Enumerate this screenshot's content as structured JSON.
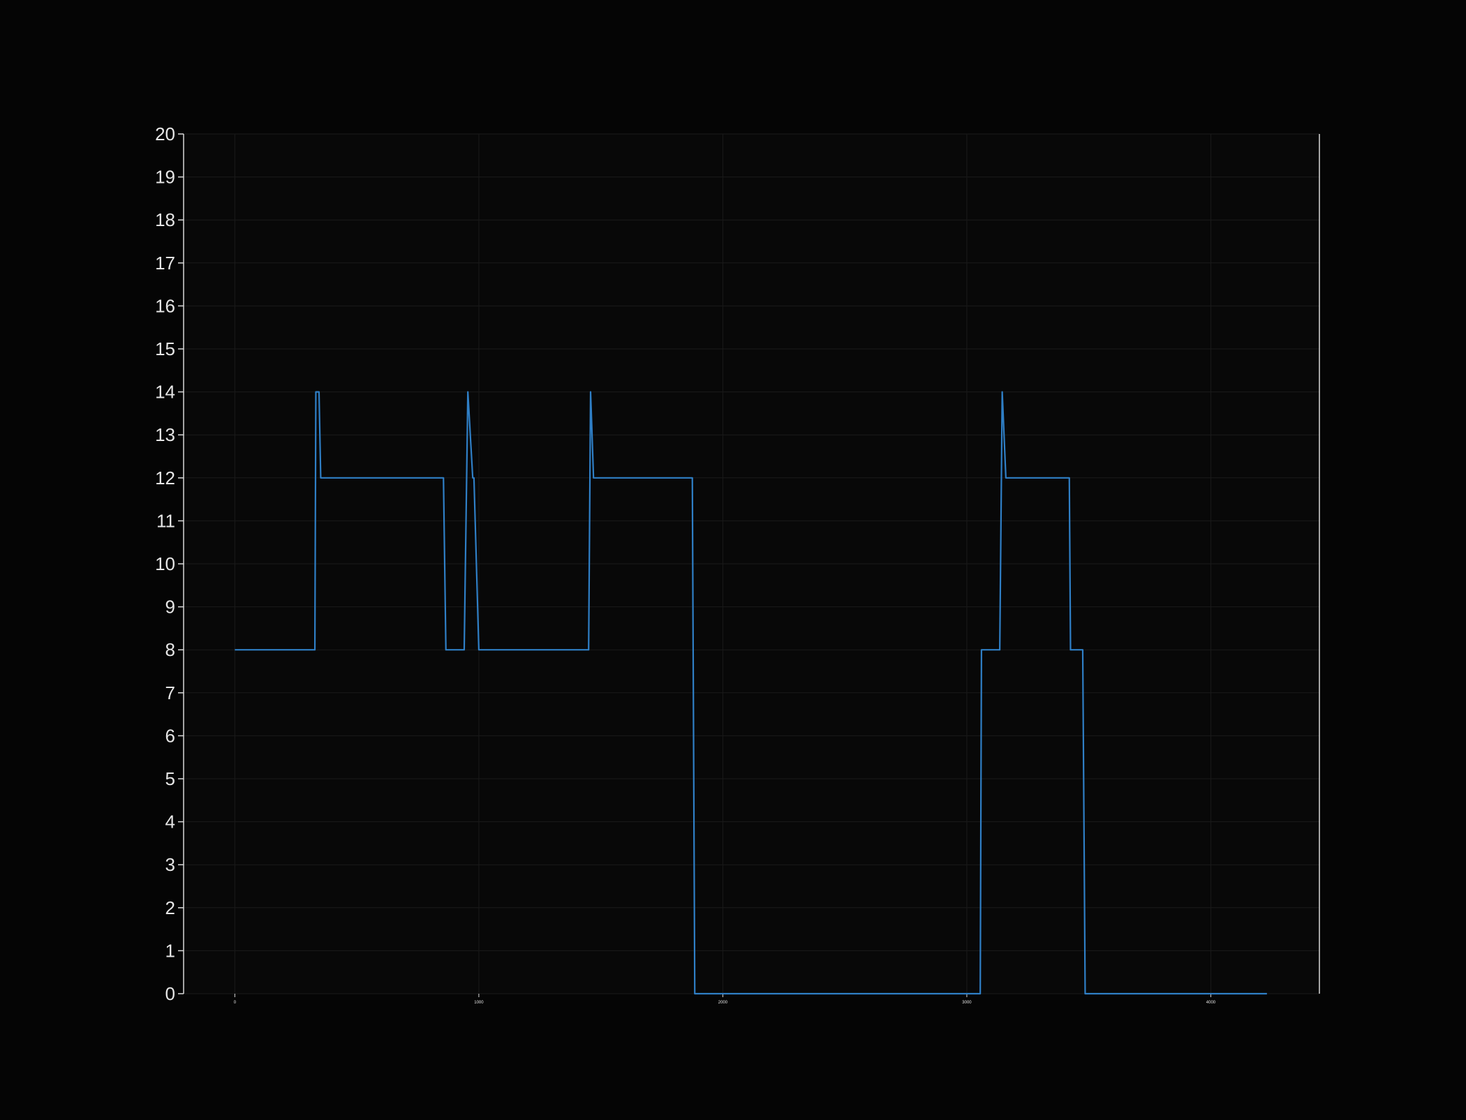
{
  "colors": {
    "background": "#050505",
    "plot_background": "#080808",
    "axis": "#d9d9d9",
    "grid": "#1a1a1a",
    "series": "#2f7fc6",
    "tick_label": "#e6e6e6"
  },
  "chart_data": {
    "type": "line",
    "title": "",
    "xlabel": "",
    "ylabel": "",
    "xlim": [
      -210,
      4445
    ],
    "ylim": [
      0,
      20
    ],
    "grid": true,
    "legend": "none",
    "x_ticks": [
      0,
      1000,
      2000,
      3000,
      4000
    ],
    "x_tick_labels": [
      "0",
      "1000",
      "2000",
      "3000",
      "4000"
    ],
    "y_ticks": [
      0,
      1,
      2,
      3,
      4,
      5,
      6,
      7,
      8,
      9,
      10,
      11,
      12,
      13,
      14,
      15,
      16,
      17,
      18,
      19,
      20
    ],
    "y_tick_labels": [
      "0",
      "1",
      "2",
      "3",
      "4",
      "5",
      "6",
      "7",
      "8",
      "9",
      "10",
      "11",
      "12",
      "13",
      "14",
      "15",
      "16",
      "17",
      "18",
      "19",
      "20"
    ],
    "series": [
      {
        "x": [
          0,
          328,
          332,
          345,
          352,
          855,
          865,
          940,
          955,
          975,
          980,
          1000,
          1450,
          1458,
          1470,
          1875,
          1885,
          3055,
          3060,
          3135,
          3145,
          3160,
          3420,
          3425,
          3475,
          3485,
          4230
        ],
        "y": [
          8,
          8,
          14,
          14,
          12,
          12,
          8,
          8,
          14,
          12,
          12,
          8,
          8,
          14,
          12,
          12,
          0,
          0,
          8,
          8,
          14,
          12,
          12,
          8,
          8,
          0,
          0
        ]
      }
    ]
  }
}
